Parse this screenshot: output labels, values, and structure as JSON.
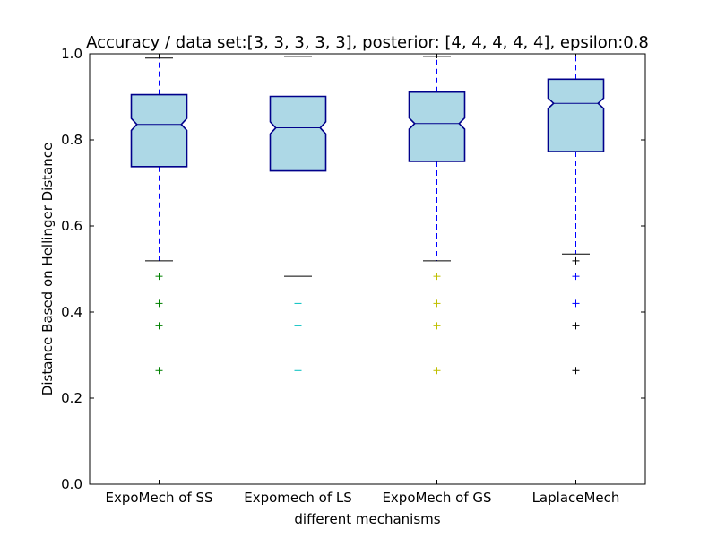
{
  "chart_data": {
    "type": "boxplot",
    "title": "Accuracy / data set:[3, 3, 3, 3, 3], posterior: [4, 4, 4, 4, 4], epsilon:0.8",
    "xlabel": "different mechanisms",
    "ylabel": "Distance Based on Hellinger Distance",
    "ylim": [
      0.0,
      1.0
    ],
    "yticks": [
      "0.0",
      "0.2",
      "0.4",
      "0.6",
      "0.8",
      "1.0"
    ],
    "grid": false,
    "notched": true,
    "box_fill": "#add8e6",
    "box_edge": "#00008b",
    "whisker_color": "#0000ff",
    "categories": [
      "ExpoMech of SS",
      "Expomech of LS",
      "ExpoMech of GS",
      "LaplaceMech"
    ],
    "boxes": [
      {
        "whislo": 0.519,
        "q1": 0.738,
        "med": 0.836,
        "q3": 0.905,
        "whishi": 0.99,
        "notch": [
          0.822,
          0.85
        ],
        "outliers": [
          0.483,
          0.42,
          0.368,
          0.264
        ],
        "outlier_color": "#008000"
      },
      {
        "whislo": 0.483,
        "q1": 0.728,
        "med": 0.828,
        "q3": 0.901,
        "whishi": 0.994,
        "notch": [
          0.814,
          0.842
        ],
        "outliers": [
          0.42,
          0.368,
          0.264
        ],
        "outlier_color": "#00bfbf"
      },
      {
        "whislo": 0.519,
        "q1": 0.75,
        "med": 0.838,
        "q3": 0.911,
        "whishi": 0.994,
        "notch": [
          0.825,
          0.851
        ],
        "outliers": [
          0.483,
          0.42,
          0.368,
          0.264
        ],
        "outlier_color": "#bfbf00"
      },
      {
        "whislo": 0.535,
        "q1": 0.773,
        "med": 0.885,
        "q3": 0.941,
        "whishi": 1.0,
        "notch": [
          0.873,
          0.897
        ],
        "outliers": [
          0.519,
          0.483,
          0.42,
          0.368,
          0.264
        ],
        "outlier_colors": [
          "#000000",
          "#0000ff",
          "#0000ff",
          "#000000",
          "#000000"
        ]
      }
    ]
  }
}
